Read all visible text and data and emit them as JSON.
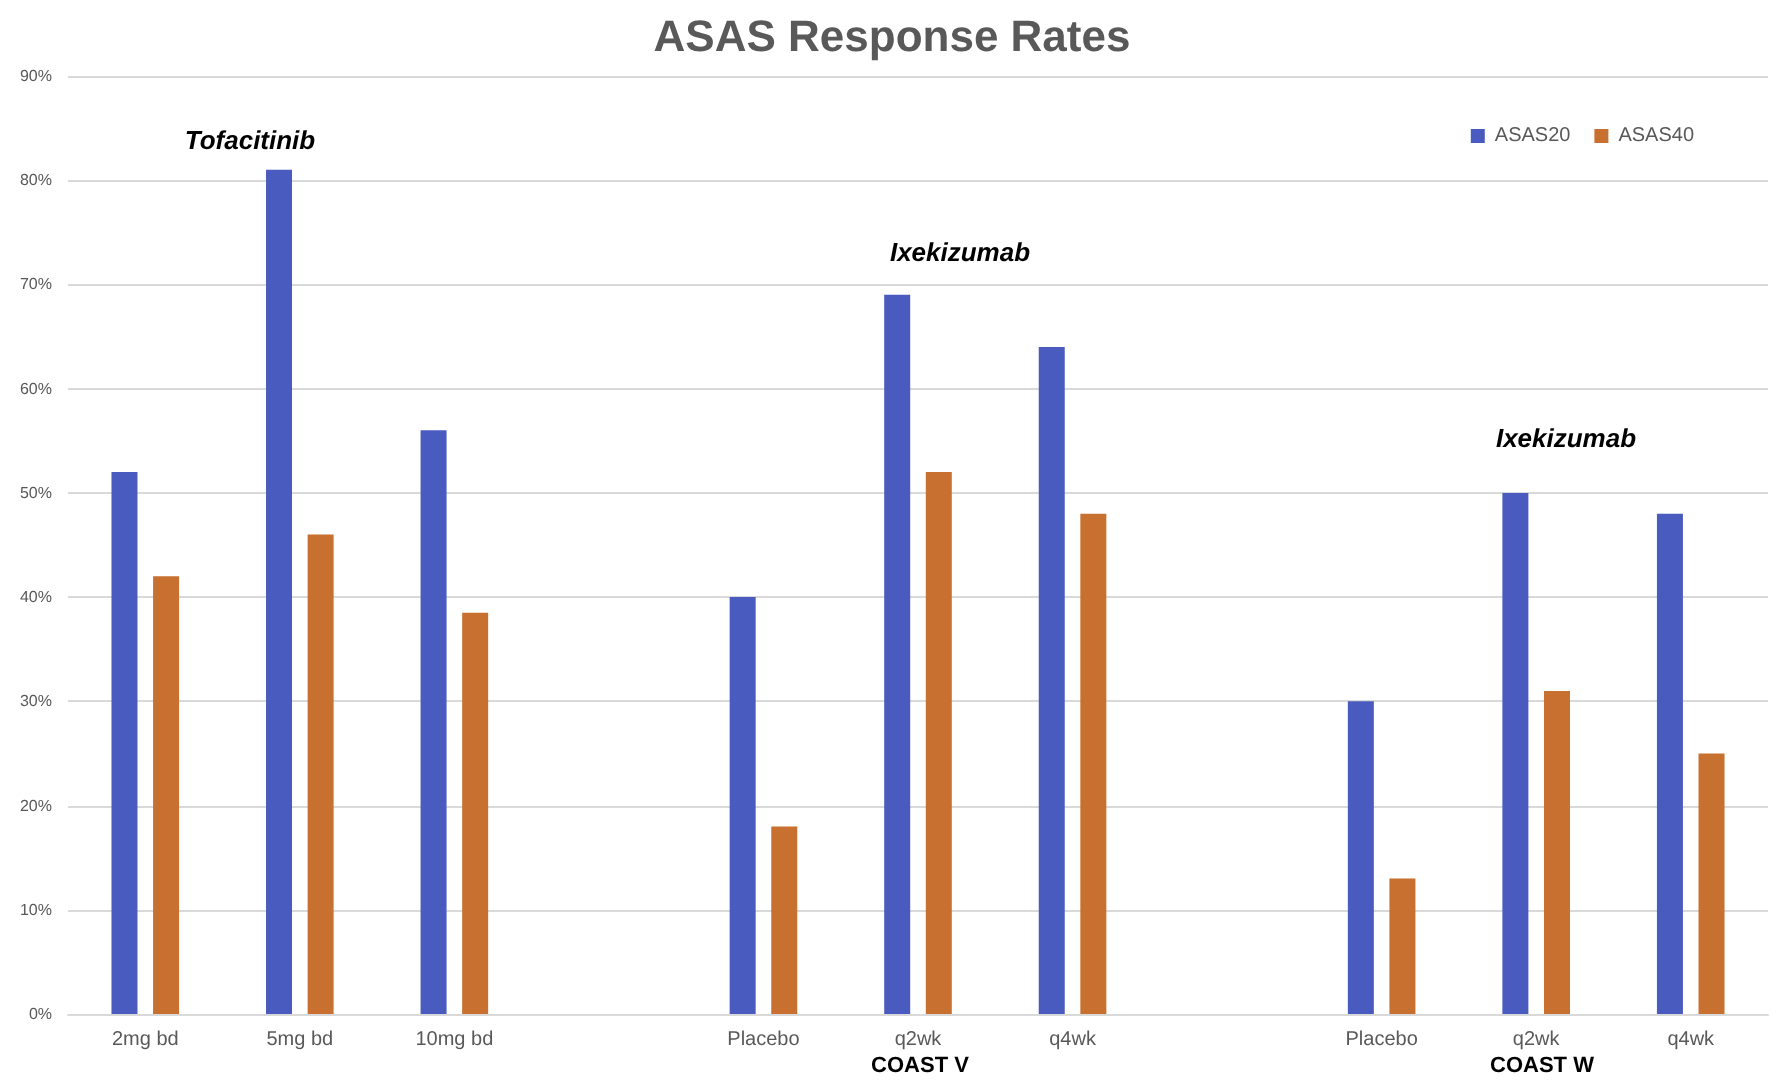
{
  "chart_data": {
    "type": "bar",
    "title": "ASAS Response Rates",
    "categories": [
      "2mg bd",
      "5mg bd",
      "10mg bd",
      null,
      "Placebo",
      "q2wk",
      "q4wk",
      null,
      "Placebo",
      "q2wk",
      "q4wk"
    ],
    "series": [
      {
        "name": "ASAS20",
        "color": "#4a5bbf",
        "values": [
          52,
          81,
          56,
          null,
          40,
          69,
          64,
          null,
          30,
          50,
          48
        ]
      },
      {
        "name": "ASAS40",
        "color": "#c8702f",
        "values": [
          42,
          46,
          38.5,
          null,
          18,
          52,
          48,
          null,
          13,
          31,
          25
        ]
      }
    ],
    "ylim": [
      0,
      90
    ],
    "yticks": [
      {
        "value": 0,
        "label": "0%"
      },
      {
        "value": 10,
        "label": "10%"
      },
      {
        "value": 20,
        "label": "20%"
      },
      {
        "value": 30,
        "label": "30%"
      },
      {
        "value": 40,
        "label": "40%"
      },
      {
        "value": 50,
        "label": "50%"
      },
      {
        "value": 60,
        "label": "60%"
      },
      {
        "value": 70,
        "label": "70%"
      },
      {
        "value": 80,
        "label": "80%"
      },
      {
        "value": 90,
        "label": "90%"
      }
    ],
    "annotations": [
      "Tofacitinib",
      "Ixekizumab",
      "Ixekizumab",
      "COAST V",
      "COAST W"
    ],
    "grid": "y",
    "legend": "top right"
  }
}
